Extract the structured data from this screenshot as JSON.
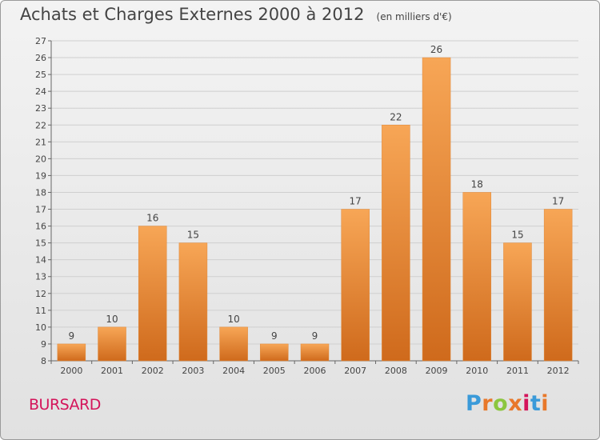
{
  "header": {
    "title": "Achats et Charges Externes 2000 à 2012",
    "unit": "(en milliers d'€)"
  },
  "footer": {
    "commune": "BURSARD",
    "brand": "Proxiti"
  },
  "colors": {
    "bar_top": "#f7a656",
    "bar_bottom": "#cf6a1c",
    "commune_text": "#d4145a",
    "brand_letters": [
      "#3a9ad9",
      "#e8782a",
      "#8cc63f",
      "#e8782a",
      "#d4145a",
      "#3a9ad9",
      "#e8782a"
    ]
  },
  "chart_data": {
    "type": "bar",
    "title": "Achats et Charges Externes 2000 à 2012",
    "subtitle": "(en milliers d'€)",
    "xlabel": "",
    "ylabel": "",
    "categories": [
      "2000",
      "2001",
      "2002",
      "2003",
      "2004",
      "2005",
      "2006",
      "2007",
      "2008",
      "2009",
      "2010",
      "2011",
      "2012"
    ],
    "values": [
      9,
      10,
      16,
      15,
      10,
      9,
      9,
      17,
      22,
      26,
      18,
      15,
      17
    ],
    "ylim": [
      8,
      27
    ],
    "yticks": [
      8,
      9,
      10,
      11,
      12,
      13,
      14,
      15,
      16,
      17,
      18,
      19,
      20,
      21,
      22,
      23,
      24,
      25,
      26,
      27
    ],
    "grid": true,
    "legend": "none"
  }
}
